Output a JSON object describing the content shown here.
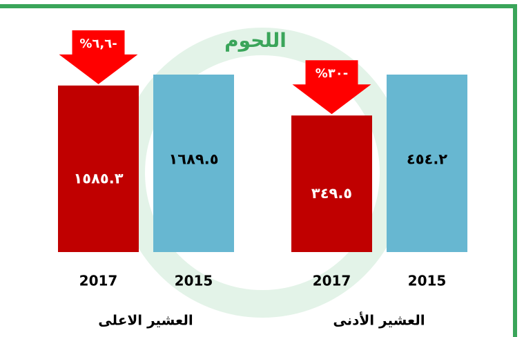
{
  "chart_data": {
    "type": "bar",
    "title": "اللحوم",
    "title_color": "#3aa55a",
    "colors": [
      "#67b7d1",
      "#c00000"
    ],
    "arrow_color": "#ff0000",
    "groups": [
      {
        "name": "العشير الأدنى",
        "categories": [
          "2015",
          "2017"
        ],
        "values": [
          454.2,
          349.5
        ],
        "value_labels": [
          "٤٥٤.٢",
          "٣٤٩.٥"
        ],
        "change": -30,
        "change_label": "%٣٠-"
      },
      {
        "name": "العشير الاعلى",
        "categories": [
          "2015",
          "2017"
        ],
        "values": [
          1689.5,
          1585.3
        ],
        "value_labels": [
          "١٦٨٩.٥",
          "١٥٨٥.٣"
        ],
        "change": -6.6,
        "change_label": "%٦,٦-"
      }
    ]
  }
}
